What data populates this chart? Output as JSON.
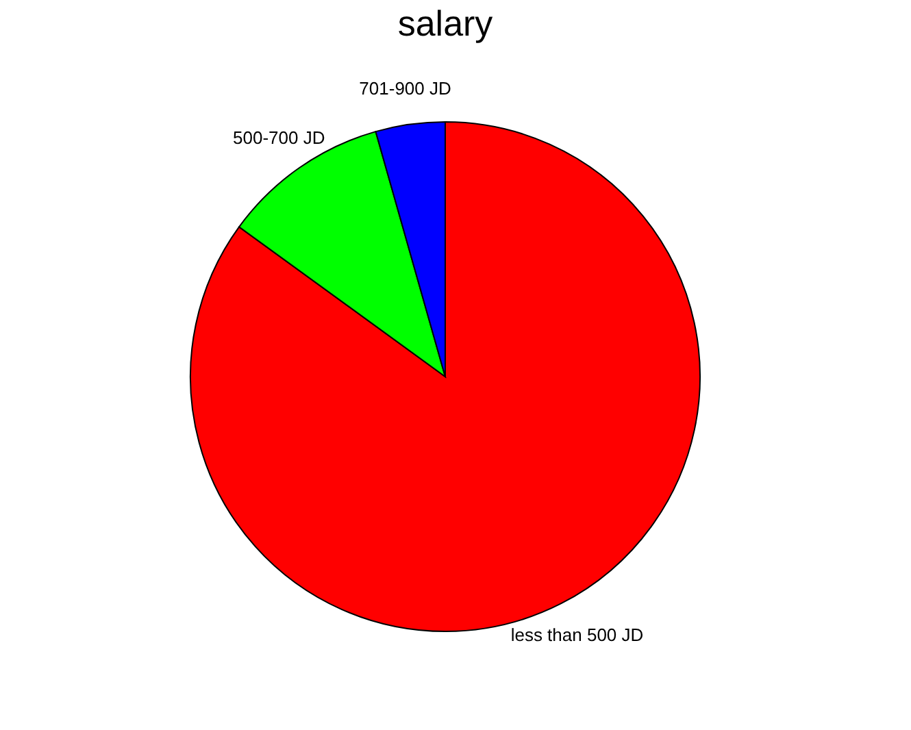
{
  "chart_data": {
    "type": "pie",
    "title": "salary",
    "categories": [
      "less than 500 JD",
      "500-700 JD",
      "701-900 JD"
    ],
    "values": [
      85,
      10.6,
      4.4
    ],
    "colors": [
      "#ff0000",
      "#00ff00",
      "#0000ff"
    ],
    "legend": false
  }
}
